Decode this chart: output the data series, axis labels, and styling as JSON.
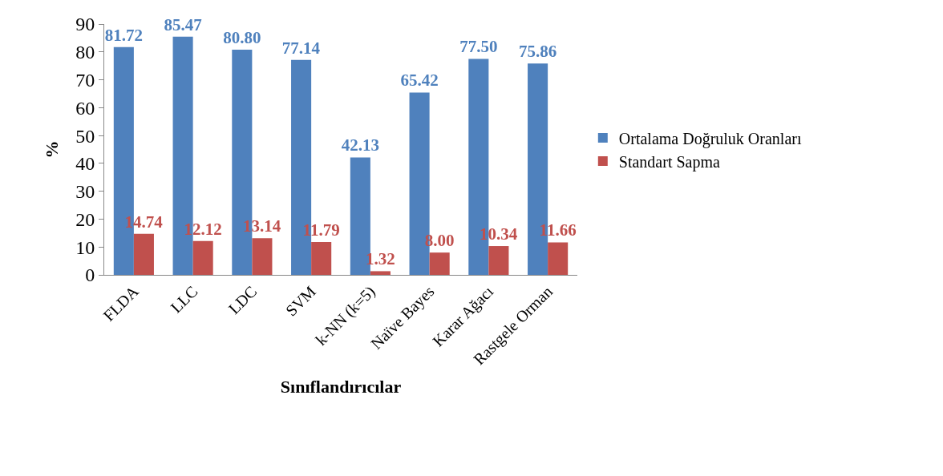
{
  "chart_data": {
    "type": "bar",
    "xlabel": "Sınıflandırıcılar",
    "ylabel": "%",
    "categories": [
      "FLDA",
      "LLC",
      "LDC",
      "SVM",
      "k-NN (k=5)",
      "Naïve Bayes",
      "Karar Ağacı",
      "Rastgele Orman"
    ],
    "series": [
      {
        "name": "Ortalama Doğruluk Oranları",
        "color": "#4f81bd",
        "values": [
          81.72,
          85.47,
          80.8,
          77.14,
          42.13,
          65.42,
          77.5,
          75.86
        ],
        "value_labels": [
          "81.72",
          "85.47",
          "80.80",
          "77.14",
          "42.13",
          "65.42",
          "77.50",
          "75.86"
        ]
      },
      {
        "name": "Standart Sapma",
        "color": "#c0504d",
        "values": [
          14.74,
          12.12,
          13.14,
          11.79,
          1.32,
          8.0,
          10.34,
          11.66
        ],
        "value_labels": [
          "14.74",
          "12.12",
          "13.14",
          "11.79",
          "1.32",
          "8.00",
          "10.34",
          "11.66"
        ]
      }
    ],
    "ylim": [
      0,
      90
    ],
    "yticks": [
      0,
      10,
      20,
      30,
      40,
      50,
      60,
      70,
      80,
      90
    ],
    "legend": "right"
  }
}
